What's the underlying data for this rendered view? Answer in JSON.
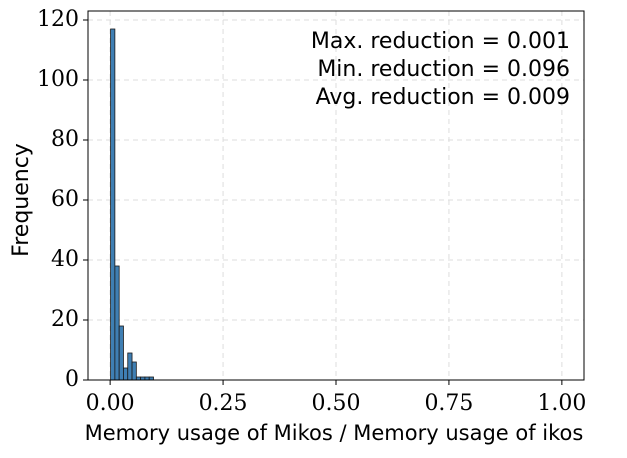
{
  "chart_data": {
    "type": "histogram",
    "xlabel": "Memory usage of Mikos / Memory usage of ikos",
    "ylabel": "Frequency",
    "annotations": [
      "Max. reduction = 0.001",
      "Min. reduction = 0.096",
      "Avg. reduction = 0.009"
    ],
    "bins": [
      0.001,
      0.0105,
      0.02,
      0.0295,
      0.039,
      0.0485,
      0.058,
      0.0675,
      0.077,
      0.0865,
      0.096
    ],
    "values": [
      117,
      38,
      18,
      4,
      9,
      6,
      1,
      1,
      1,
      1
    ],
    "color": "#3f7fb3",
    "xlim": [
      -0.049,
      1.049
    ],
    "ylim": [
      0,
      123
    ],
    "xticks": [
      {
        "value": 0,
        "label": "0.00"
      },
      {
        "value": 0.25,
        "label": "0.25"
      },
      {
        "value": 0.5,
        "label": "0.50"
      },
      {
        "value": 0.75,
        "label": "0.75"
      },
      {
        "value": 1,
        "label": "1.00"
      }
    ],
    "yticks": [
      0,
      20,
      40,
      60,
      80,
      100,
      120
    ],
    "grid": true
  }
}
